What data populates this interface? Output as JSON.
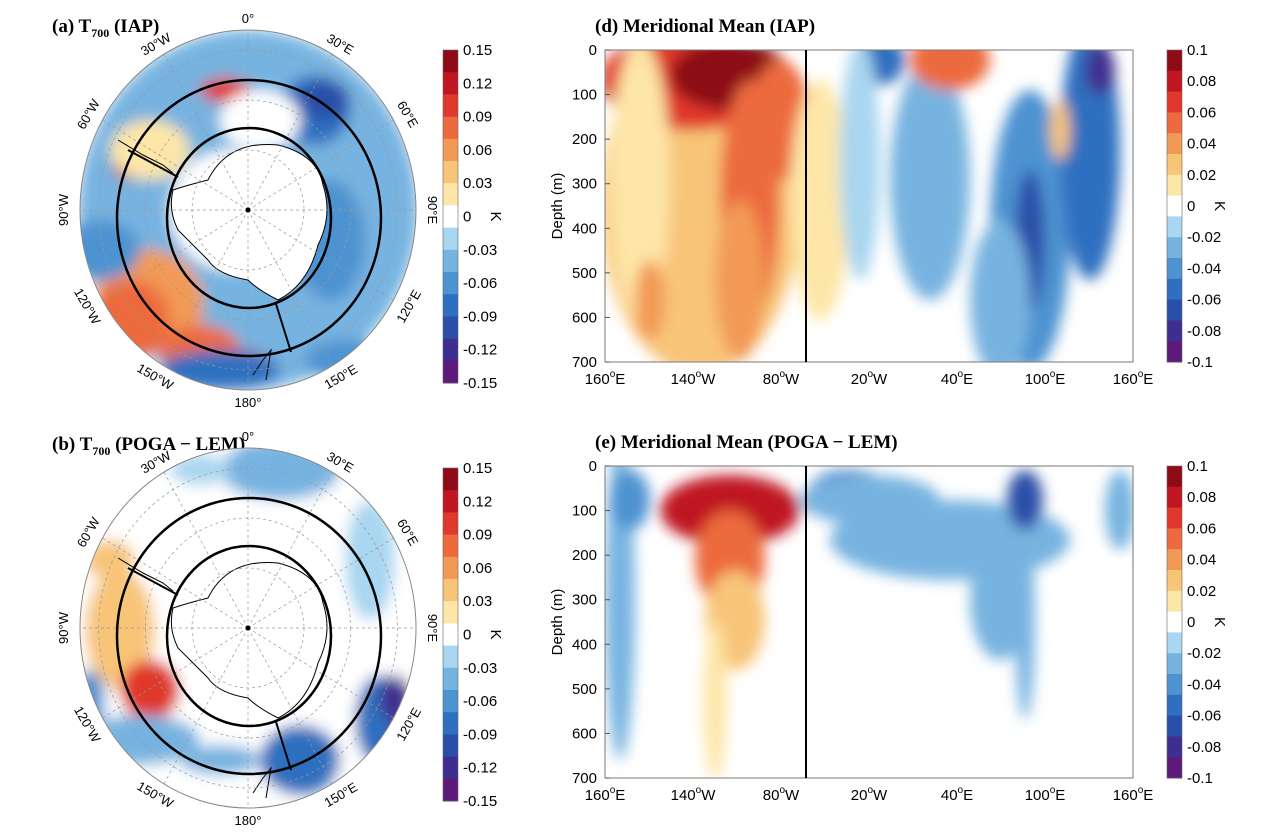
{
  "chart_data": [
    {
      "panel": "a",
      "type": "heatmap",
      "projection": "south-polar-stereographic",
      "title": "(a) T",
      "title_sub": "700",
      "title_suffix": " (IAP)",
      "lon_labels": [
        "0°",
        "30°E",
        "60°E",
        "90°E",
        "120°E",
        "150°E",
        "180°",
        "150°W",
        "120°W",
        "90°W",
        "60°W",
        "30°W"
      ],
      "colorbar": {
        "label": "K",
        "ticks": [
          "0.15",
          "0.12",
          "0.09",
          "0.06",
          "0.03",
          "0",
          "-0.03",
          "-0.06",
          "-0.09",
          "-0.12",
          "-0.15"
        ],
        "range": [
          -0.15,
          0.15
        ]
      },
      "colormap": "diverging red-white-blue"
    },
    {
      "panel": "b",
      "type": "heatmap",
      "projection": "south-polar-stereographic",
      "title": "(b) T",
      "title_sub": "700",
      "title_suffix": " (POGA − LEM)",
      "lon_labels": [
        "0°",
        "30°E",
        "60°E",
        "90°E",
        "120°E",
        "150°E",
        "180°",
        "150°W",
        "120°W",
        "90°W",
        "60°W",
        "30°W"
      ],
      "colorbar": {
        "label": "K",
        "ticks": [
          "0.15",
          "0.12",
          "0.09",
          "0.06",
          "0.03",
          "0",
          "-0.03",
          "-0.06",
          "-0.09",
          "-0.12",
          "-0.15"
        ],
        "range": [
          -0.15,
          0.15
        ]
      },
      "colormap": "diverging red-white-blue"
    },
    {
      "panel": "d",
      "type": "heatmap",
      "title": "(d) Meridional Mean (IAP)",
      "ylabel": "Depth (m)",
      "yticks": [
        "0",
        "100",
        "200",
        "300",
        "400",
        "500",
        "600",
        "700"
      ],
      "ylim": [
        0,
        700
      ],
      "xticks": [
        "160°E",
        "140°W",
        "80°W",
        "20°W",
        "40°E",
        "100°E",
        "160°E"
      ],
      "vertical_line_at": "65°W",
      "colorbar": {
        "label": "K",
        "ticks": [
          "0.1",
          "0.08",
          "0.06",
          "0.04",
          "0.02",
          "0",
          "-0.02",
          "-0.04",
          "-0.06",
          "-0.08",
          "-0.1"
        ],
        "range": [
          -0.1,
          0.1
        ]
      }
    },
    {
      "panel": "e",
      "type": "heatmap",
      "title": "(e) Meridional Mean (POGA − LEM)",
      "ylabel": "Depth (m)",
      "yticks": [
        "0",
        "100",
        "200",
        "300",
        "400",
        "500",
        "600",
        "700"
      ],
      "ylim": [
        0,
        700
      ],
      "xticks": [
        "160°E",
        "140°W",
        "80°W",
        "20°W",
        "40°E",
        "100°E",
        "160°E"
      ],
      "vertical_line_at": "65°W",
      "colorbar": {
        "label": "K",
        "ticks": [
          "0.1",
          "0.08",
          "0.06",
          "0.04",
          "0.02",
          "0",
          "-0.02",
          "-0.04",
          "-0.06",
          "-0.08",
          "-0.1"
        ],
        "range": [
          -0.1,
          0.1
        ]
      }
    }
  ],
  "colors": {
    "scale": [
      "#5e1a7a",
      "#3f2d8f",
      "#2a4fa8",
      "#2f6fc0",
      "#4e93d1",
      "#77b3e0",
      "#a9d6f0",
      "#ffffff",
      "#fde6a8",
      "#f8c478",
      "#f29a55",
      "#ec6a3e",
      "#e0382c",
      "#c01622",
      "#8d0a16"
    ]
  }
}
